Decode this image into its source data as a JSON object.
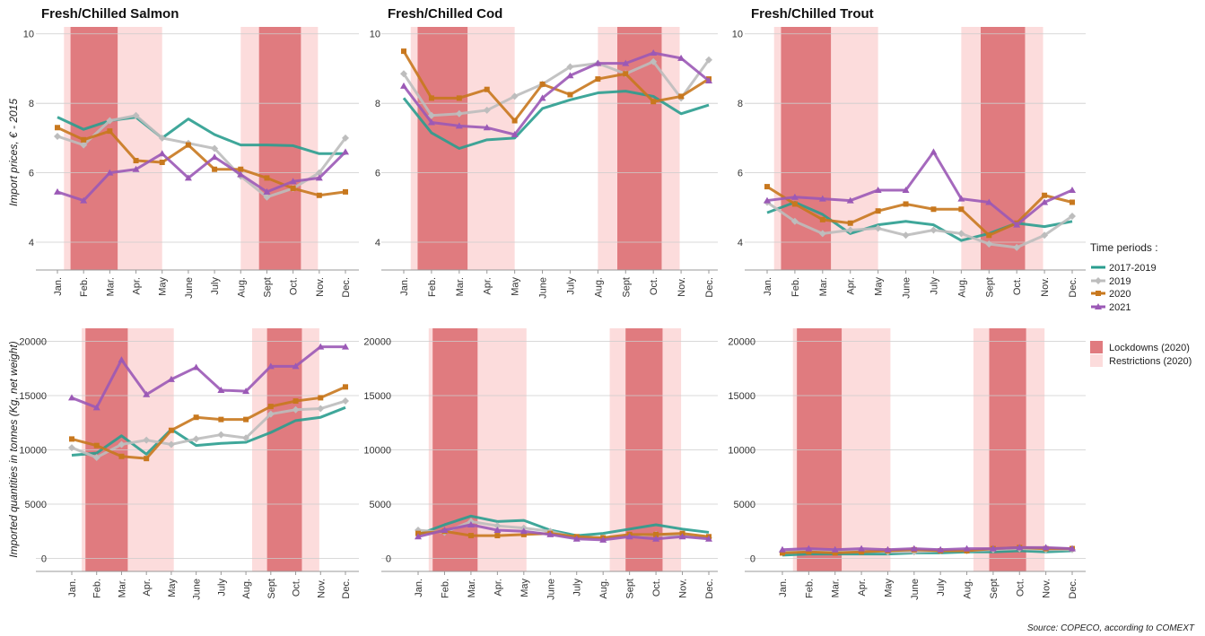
{
  "months": [
    "Jan.",
    "Feb.",
    "Mar.",
    "Apr.",
    "May",
    "June",
    "July",
    "Aug.",
    "Sept",
    "Oct.",
    "Nov.",
    "Dec."
  ],
  "periods": [
    "2017-2019",
    "2019",
    "2020",
    "2021"
  ],
  "period_colors": {
    "2017-2019": "#2a9d8f",
    "2019": "#bdbdbd",
    "2020": "#c8781e",
    "2021": "#9b59b6"
  },
  "shade_colors": {
    "lockdown": "#e07b7f",
    "restriction": "#fcdcdc"
  },
  "legend": {
    "periods_title": "Time periods :",
    "lockdowns_label": "Lockdowns (2020)",
    "restrictions_label": "Restrictions (2020)"
  },
  "y_labels": {
    "top": "Import prices, € - 2015",
    "bottom": "Imported quantities in tonnes (Kg, net weight)"
  },
  "source": "Source: COPECO, according to COMEXT",
  "chart_data": [
    {
      "type": "line",
      "title": "Fresh/Chilled Salmon",
      "ylabel": "Import prices, € - 2015",
      "ylim": [
        3.2,
        10.2
      ],
      "yticks": [
        4,
        6,
        8,
        10
      ],
      "lockdowns": [
        [
          1.5,
          3.3
        ],
        [
          8.7,
          10.3
        ]
      ],
      "restrictions": [
        [
          1.25,
          5.0
        ],
        [
          8.0,
          10.95
        ]
      ],
      "series": [
        {
          "name": "2017-2019",
          "values": [
            7.6,
            7.25,
            7.5,
            7.6,
            7.0,
            7.55,
            7.1,
            6.8,
            6.8,
            6.78,
            6.55,
            6.55
          ]
        },
        {
          "name": "2019",
          "values": [
            7.05,
            6.8,
            7.5,
            7.65,
            7.0,
            6.85,
            6.7,
            5.9,
            5.3,
            5.55,
            6.0,
            7.0
          ]
        },
        {
          "name": "2020",
          "values": [
            7.3,
            6.95,
            7.2,
            6.35,
            6.3,
            6.8,
            6.1,
            6.1,
            5.85,
            5.55,
            5.35,
            5.45
          ]
        },
        {
          "name": "2021",
          "values": [
            5.45,
            5.2,
            6.0,
            6.1,
            6.55,
            5.85,
            6.45,
            5.95,
            5.45,
            5.75,
            5.85,
            6.6
          ]
        }
      ]
    },
    {
      "type": "line",
      "title": "Fresh/Chilled Cod",
      "ylim": [
        3.2,
        10.2
      ],
      "yticks": [
        4,
        6,
        8,
        10
      ],
      "lockdowns": [
        [
          1.5,
          3.3
        ],
        [
          8.7,
          10.3
        ]
      ],
      "restrictions": [
        [
          1.25,
          5.0
        ],
        [
          8.0,
          10.95
        ]
      ],
      "series": [
        {
          "name": "2017-2019",
          "values": [
            8.15,
            7.15,
            6.7,
            6.95,
            7.0,
            7.85,
            8.1,
            8.3,
            8.35,
            8.2,
            7.7,
            7.95
          ]
        },
        {
          "name": "2019",
          "values": [
            8.85,
            7.65,
            7.7,
            7.8,
            8.2,
            8.55,
            9.05,
            9.15,
            8.85,
            9.2,
            8.15,
            9.25
          ]
        },
        {
          "name": "2020",
          "values": [
            9.5,
            8.15,
            8.15,
            8.4,
            7.5,
            8.55,
            8.25,
            8.7,
            8.85,
            8.05,
            8.2,
            8.7
          ]
        },
        {
          "name": "2021",
          "values": [
            8.5,
            7.45,
            7.35,
            7.3,
            7.1,
            8.15,
            8.8,
            9.15,
            9.15,
            9.45,
            9.3,
            8.65
          ]
        }
      ]
    },
    {
      "type": "line",
      "title": "Fresh/Chilled Trout",
      "ylim": [
        3.2,
        10.2
      ],
      "yticks": [
        4,
        6,
        8,
        10
      ],
      "lockdowns": [
        [
          1.5,
          3.3
        ],
        [
          8.7,
          10.3
        ]
      ],
      "restrictions": [
        [
          1.25,
          5.0
        ],
        [
          8.0,
          10.95
        ]
      ],
      "series": [
        {
          "name": "2017-2019",
          "values": [
            4.85,
            5.15,
            4.8,
            4.25,
            4.5,
            4.6,
            4.5,
            4.05,
            4.25,
            4.55,
            4.45,
            4.6
          ]
        },
        {
          "name": "2019",
          "values": [
            5.15,
            4.6,
            4.25,
            4.35,
            4.4,
            4.2,
            4.35,
            4.25,
            3.95,
            3.85,
            4.2,
            4.75
          ]
        },
        {
          "name": "2020",
          "values": [
            5.6,
            5.1,
            4.65,
            4.55,
            4.9,
            5.1,
            4.95,
            4.95,
            4.2,
            4.55,
            5.35,
            5.15
          ]
        },
        {
          "name": "2021",
          "values": [
            5.2,
            5.3,
            5.25,
            5.2,
            5.5,
            5.5,
            6.6,
            5.25,
            5.15,
            4.5,
            5.15,
            5.5
          ]
        }
      ]
    },
    {
      "type": "line",
      "title": "",
      "ylabel": "Imported quantities in tonnes (Kg, net weight)",
      "ylim": [
        -1200,
        21200
      ],
      "yticks": [
        0,
        5000,
        10000,
        15000,
        20000
      ],
      "lockdowns": [
        [
          1.55,
          3.25
        ],
        [
          8.85,
          10.25
        ]
      ],
      "restrictions": [
        [
          1.4,
          5.1
        ],
        [
          8.25,
          10.95
        ]
      ],
      "series": [
        {
          "name": "2017-2019",
          "values": [
            9500,
            9700,
            11300,
            9600,
            11900,
            10400,
            10600,
            10700,
            11600,
            12700,
            13000,
            13900
          ]
        },
        {
          "name": "2019",
          "values": [
            10200,
            9300,
            10500,
            10900,
            10500,
            11000,
            11400,
            11100,
            13300,
            13700,
            13800,
            14500
          ]
        },
        {
          "name": "2020",
          "values": [
            11000,
            10400,
            9400,
            9200,
            11800,
            13000,
            12800,
            12800,
            14000,
            14500,
            14800,
            15800
          ]
        },
        {
          "name": "2021",
          "values": [
            14800,
            13900,
            18300,
            15100,
            16500,
            17600,
            15500,
            15400,
            17700,
            17700,
            19500,
            19500
          ]
        }
      ]
    },
    {
      "type": "line",
      "title": "",
      "ylim": [
        -1200,
        21200
      ],
      "yticks": [
        0,
        5000,
        10000,
        15000,
        20000
      ],
      "lockdowns": [
        [
          1.55,
          3.25
        ],
        [
          8.85,
          10.25
        ]
      ],
      "restrictions": [
        [
          1.4,
          5.1
        ],
        [
          8.25,
          10.95
        ]
      ],
      "series": [
        {
          "name": "2017-2019",
          "values": [
            2200,
            3100,
            3900,
            3400,
            3500,
            2600,
            2100,
            2300,
            2700,
            3100,
            2700,
            2400
          ]
        },
        {
          "name": "2019",
          "values": [
            2600,
            2400,
            3400,
            3000,
            2800,
            2500,
            1900,
            1900,
            2100,
            2200,
            2100,
            1900
          ]
        },
        {
          "name": "2020",
          "values": [
            2300,
            2500,
            2100,
            2100,
            2200,
            2300,
            2000,
            1900,
            2200,
            2200,
            2300,
            2000
          ]
        },
        {
          "name": "2021",
          "values": [
            2000,
            2600,
            3100,
            2600,
            2500,
            2200,
            1800,
            1700,
            2000,
            1800,
            2000,
            1800
          ]
        }
      ]
    },
    {
      "type": "line",
      "title": "",
      "ylim": [
        -1200,
        21200
      ],
      "yticks": [
        0,
        5000,
        10000,
        15000,
        20000
      ],
      "lockdowns": [
        [
          1.55,
          3.25
        ],
        [
          8.85,
          10.25
        ]
      ],
      "restrictions": [
        [
          1.4,
          5.1
        ],
        [
          8.25,
          10.95
        ]
      ],
      "series": [
        {
          "name": "2017-2019",
          "values": [
            300,
            400,
            400,
            400,
            400,
            500,
            500,
            600,
            600,
            700,
            600,
            700
          ]
        },
        {
          "name": "2019",
          "values": [
            600,
            700,
            700,
            700,
            600,
            600,
            700,
            700,
            800,
            900,
            800,
            800
          ]
        },
        {
          "name": "2020",
          "values": [
            500,
            600,
            500,
            600,
            700,
            800,
            700,
            700,
            900,
            1000,
            900,
            900
          ]
        },
        {
          "name": "2021",
          "values": [
            800,
            900,
            800,
            900,
            800,
            900,
            800,
            900,
            900,
            1000,
            1000,
            900
          ]
        }
      ]
    }
  ]
}
